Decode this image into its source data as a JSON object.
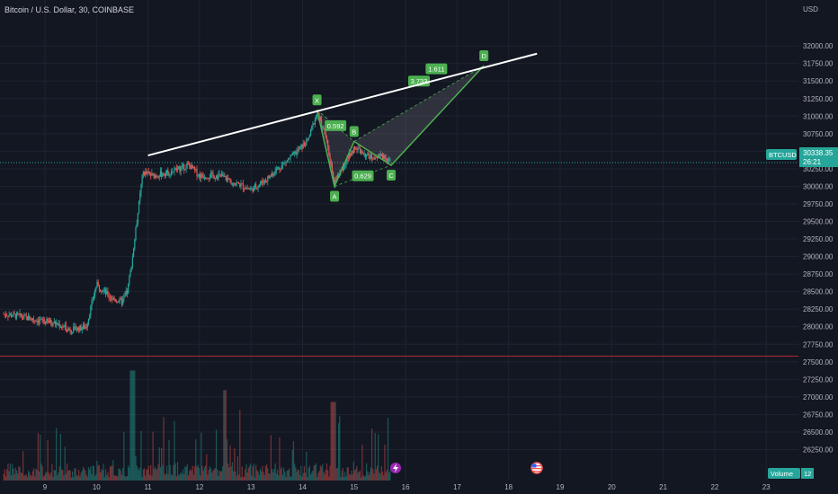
{
  "header": {
    "title": "Bitcoin / U.S. Dollar, 30, COINBASE"
  },
  "price_axis": {
    "unit_label": "USD",
    "ticks": [
      "32000.00",
      "31750.00",
      "31500.00",
      "31250.00",
      "31000.00",
      "30750.00",
      "30500.00",
      "30250.00",
      "30000.00",
      "29750.00",
      "29500.00",
      "29250.00",
      "29000.00",
      "28750.00",
      "28500.00",
      "28250.00",
      "28000.00",
      "27750.00",
      "27500.00",
      "27250.00",
      "27000.00",
      "26750.00",
      "26500.00",
      "26250.00"
    ],
    "ticker_label": "BTCUSD",
    "last_price": "30338.35",
    "countdown": "26:21",
    "volume_label": "Volume",
    "volume_value": "12"
  },
  "time_axis": {
    "ticks": [
      "9",
      "10",
      "11",
      "12",
      "13",
      "14",
      "15",
      "16",
      "17",
      "18",
      "19",
      "20",
      "21",
      "22",
      "23"
    ]
  },
  "colors": {
    "background": "#131722",
    "grid": "#1f2330",
    "text": "#b2b5be",
    "up": "#26a69a",
    "down": "#ef5350",
    "pattern": "#4caf50",
    "trendline": "#ffffff",
    "level": "#b22833"
  },
  "pattern": {
    "points": [
      {
        "label": "X",
        "date": 14.28,
        "price": 31090
      },
      {
        "label": "A",
        "date": 14.62,
        "price": 30000
      },
      {
        "label": "B",
        "date": 15.0,
        "price": 30640
      },
      {
        "label": "C",
        "date": 15.72,
        "price": 30300
      },
      {
        "label": "D",
        "date": 17.52,
        "price": 31720
      }
    ],
    "ratios": [
      "0.592",
      "0.629",
      "1.611",
      "3.733"
    ]
  },
  "chart_data": {
    "type": "candlestick",
    "title": "Bitcoin / U.S. Dollar, 30, COINBASE",
    "x_ticks": [
      9,
      10,
      11,
      12,
      13,
      14,
      15,
      16,
      17,
      18,
      19,
      20,
      21,
      22,
      23
    ],
    "ylim": [
      26100,
      32350
    ],
    "horizontal_level": 27580,
    "trendline": {
      "start": [
        11.0,
        30440
      ],
      "end": [
        18.55,
        31890
      ]
    },
    "price_path": [
      [
        8.2,
        28180
      ],
      [
        8.5,
        28150
      ],
      [
        8.8,
        28100
      ],
      [
        9.2,
        28050
      ],
      [
        9.5,
        27950
      ],
      [
        9.8,
        28000
      ],
      [
        10.0,
        28600
      ],
      [
        10.3,
        28400
      ],
      [
        10.5,
        28350
      ],
      [
        10.6,
        28500
      ],
      [
        10.7,
        29000
      ],
      [
        10.8,
        29600
      ],
      [
        10.9,
        30200
      ],
      [
        11.1,
        30150
      ],
      [
        11.4,
        30200
      ],
      [
        11.8,
        30300
      ],
      [
        12.0,
        30150
      ],
      [
        12.4,
        30150
      ],
      [
        12.7,
        30050
      ],
      [
        13.0,
        29950
      ],
      [
        13.3,
        30100
      ],
      [
        13.6,
        30300
      ],
      [
        13.9,
        30500
      ],
      [
        14.1,
        30650
      ],
      [
        14.28,
        31050
      ],
      [
        14.45,
        30700
      ],
      [
        14.62,
        30050
      ],
      [
        14.8,
        30300
      ],
      [
        15.0,
        30550
      ],
      [
        15.3,
        30420
      ],
      [
        15.6,
        30430
      ],
      [
        15.72,
        30338
      ]
    ],
    "volume_ylim": [
      0,
      160
    ],
    "last_price": 30338.35
  }
}
